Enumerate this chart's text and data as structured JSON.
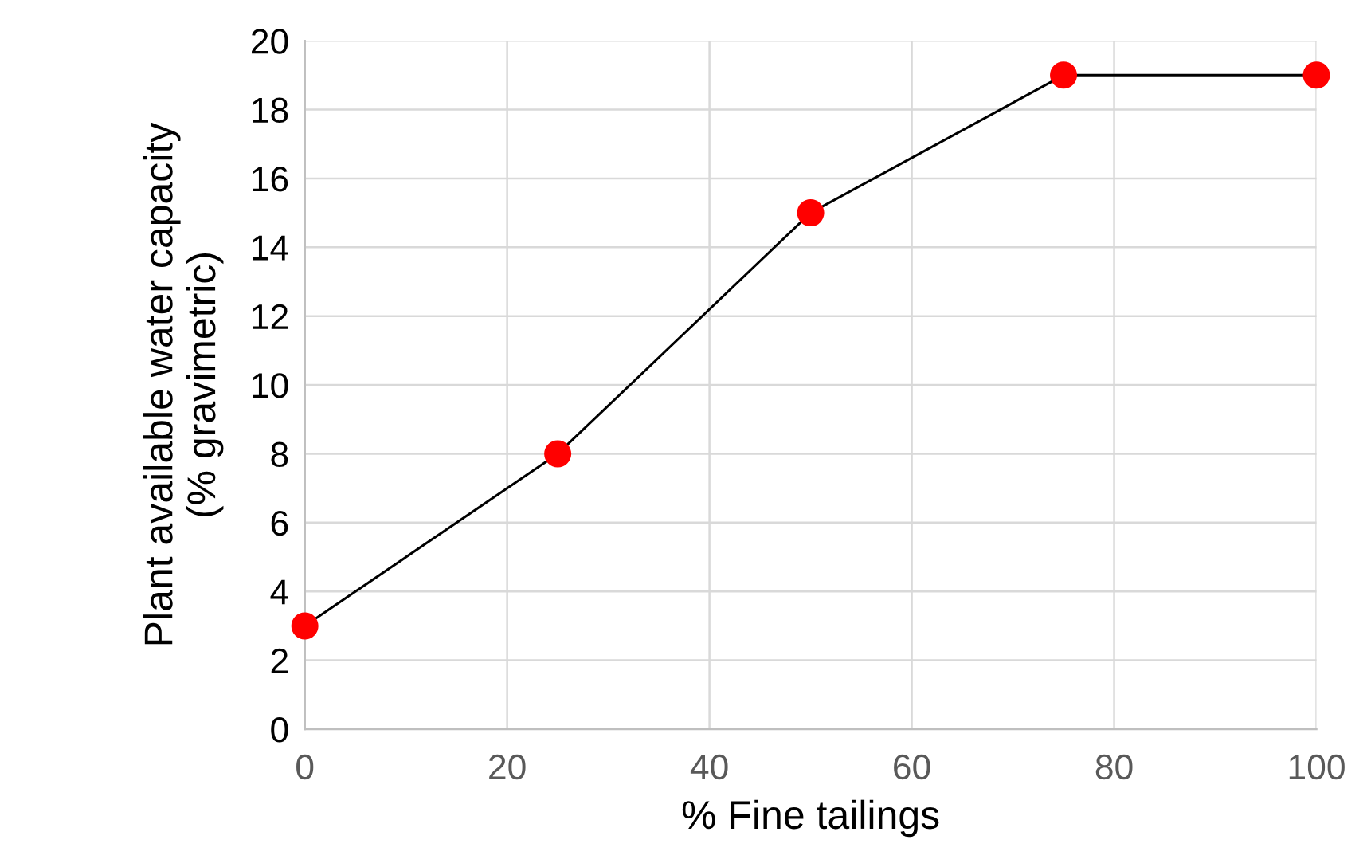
{
  "chart_data": {
    "type": "line",
    "xlabel": "% Fine tailings",
    "ylabel": "Plant available water capacity\n(% gravimetric)",
    "x": [
      0,
      25,
      50,
      75,
      100
    ],
    "series": [
      {
        "color": "#000000",
        "values": [
          3,
          8,
          15,
          19,
          19
        ],
        "colors": [
          "#ff0000",
          "#ff0000",
          "#ff0000",
          "#ff0000",
          "#ff0000"
        ]
      }
    ],
    "marker": "circle",
    "line_style": "solid",
    "grid": true,
    "xlim": [
      0,
      100
    ],
    "xticks": [
      0,
      20,
      40,
      60,
      80,
      100
    ],
    "ylim": [
      0,
      20
    ],
    "yticks": [
      0,
      2,
      4,
      6,
      8,
      10,
      12,
      14,
      16,
      18,
      20
    ]
  }
}
